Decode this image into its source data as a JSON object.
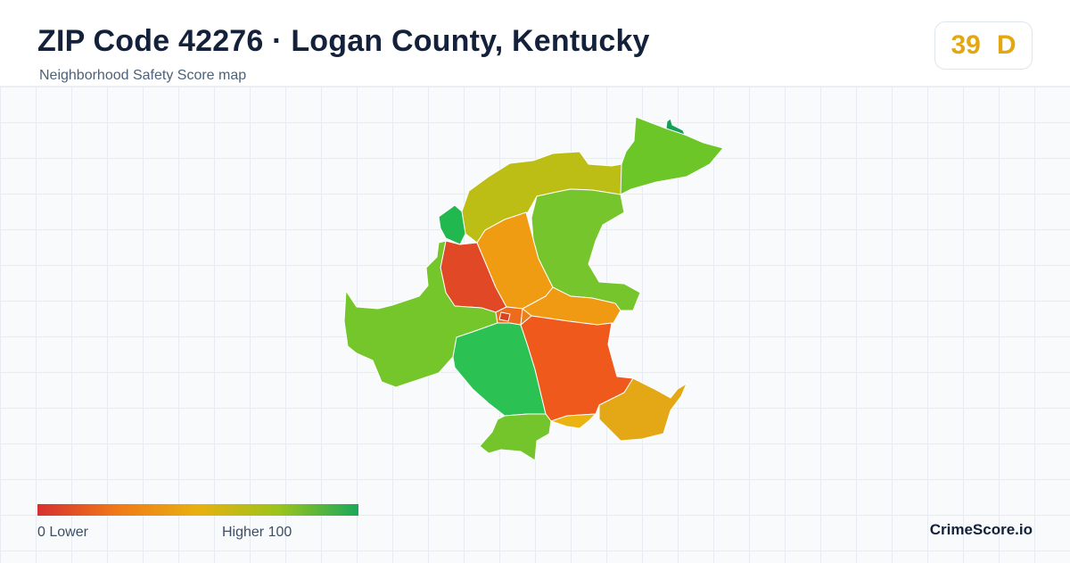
{
  "header": {
    "title": "ZIP Code 42276 · Logan County, Kentucky",
    "subtitle": "Neighborhood Safety Score map"
  },
  "score": {
    "value": "39",
    "grade": "D",
    "color": "#e3a714"
  },
  "map": {
    "regions": [
      {
        "name": "north-tip",
        "color": "#14a05a"
      },
      {
        "name": "northeast",
        "color": "#6cc627"
      },
      {
        "name": "north-central",
        "color": "#bcbd15"
      },
      {
        "name": "northwest-small",
        "color": "#22b850"
      },
      {
        "name": "central-west",
        "color": "#e04826"
      },
      {
        "name": "central-north",
        "color": "#ef9c12"
      },
      {
        "name": "east-central",
        "color": "#76c52c"
      },
      {
        "name": "central-east",
        "color": "#f09a14"
      },
      {
        "name": "west",
        "color": "#74c62a"
      },
      {
        "name": "south-central",
        "color": "#2cc253"
      },
      {
        "name": "southeast",
        "color": "#ef5a1c"
      },
      {
        "name": "far-southeast",
        "color": "#e4a715"
      },
      {
        "name": "south",
        "color": "#74c52b"
      },
      {
        "name": "south-small",
        "color": "#eab312"
      },
      {
        "name": "downtown-1",
        "color": "#ec6b1c"
      },
      {
        "name": "downtown-2",
        "color": "#e9821a"
      },
      {
        "name": "downtown-3",
        "color": "#d9431f"
      }
    ]
  },
  "legend": {
    "low_label": "0  Lower",
    "high_label": "Higher  100",
    "colors": [
      "#d63030",
      "#f07a18",
      "#e8b010",
      "#9cc41c",
      "#1aa85a"
    ]
  },
  "brand": {
    "name": "CrimeScore.io"
  }
}
